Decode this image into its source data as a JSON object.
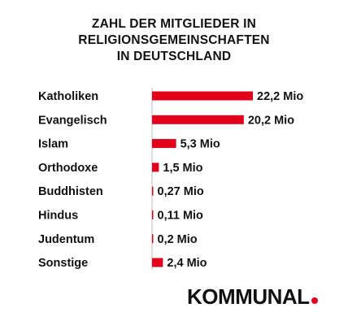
{
  "chart_data": {
    "type": "bar",
    "orientation": "horizontal",
    "title_lines": [
      "ZAHL DER MITGLIEDER IN",
      "RELIGIONSGEMEINSCHAFTEN",
      "IN DEUTSCHLAND"
    ],
    "categories": [
      "Katholiken",
      "Evangelisch",
      "Islam",
      "Orthodoxe",
      "Buddhisten",
      "Hindus",
      "Judentum",
      "Sonstige"
    ],
    "values": [
      22.2,
      20.2,
      5.3,
      1.5,
      0.27,
      0.11,
      0.2,
      2.4
    ],
    "value_labels": [
      "22,2 Mio",
      "20,2 Mio",
      "5,3 Mio",
      "1,5 Mio",
      "0,27 Mio",
      "0,11 Mio",
      "0,2 Mio",
      "2,4 Mio"
    ],
    "xlim": [
      0,
      22.2
    ],
    "grid": false,
    "legend": "none"
  },
  "brand": {
    "logo_text": "KOMMUNAL",
    "accent_color": "#e2001a"
  },
  "colors": {
    "bar": "#e2001a",
    "axis": "#bbbbbb"
  }
}
